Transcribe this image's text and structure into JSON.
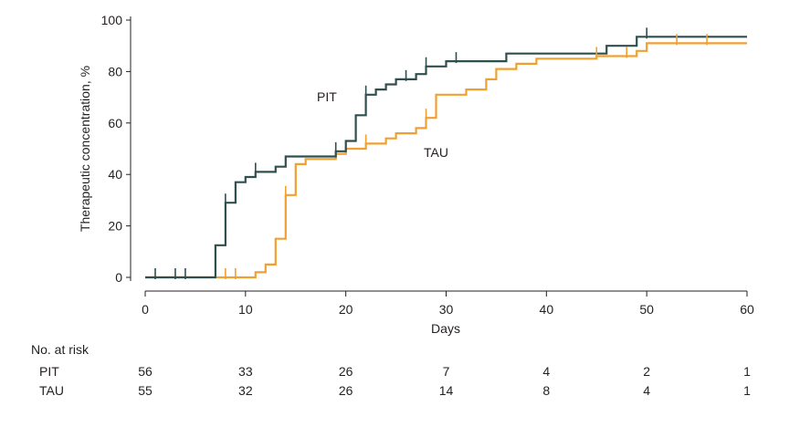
{
  "chart_data": {
    "type": "line",
    "subtype": "kaplan-meier-cumulative",
    "xlabel": "Days",
    "ylabel": "Therapeutic concentration, %",
    "xlim": [
      0,
      60
    ],
    "ylim": [
      0,
      100
    ],
    "x_ticks": [
      0,
      10,
      20,
      30,
      40,
      50,
      60
    ],
    "y_ticks": [
      0,
      20,
      40,
      60,
      80,
      100
    ],
    "grid": false,
    "series": [
      {
        "name": "PIT",
        "color": "#2f4f4f",
        "steps": [
          [
            0,
            0
          ],
          [
            7,
            0
          ],
          [
            7,
            12.5
          ],
          [
            8,
            12.5
          ],
          [
            8,
            29
          ],
          [
            9,
            29
          ],
          [
            9,
            37
          ],
          [
            10,
            37
          ],
          [
            10,
            39
          ],
          [
            11,
            39
          ],
          [
            11,
            41
          ],
          [
            13,
            41
          ],
          [
            13,
            43
          ],
          [
            14,
            43
          ],
          [
            14,
            47
          ],
          [
            19,
            47
          ],
          [
            19,
            49
          ],
          [
            20,
            49
          ],
          [
            20,
            53
          ],
          [
            21,
            53
          ],
          [
            21,
            63
          ],
          [
            22,
            63
          ],
          [
            22,
            71
          ],
          [
            23,
            71
          ],
          [
            23,
            73
          ],
          [
            24,
            73
          ],
          [
            24,
            75
          ],
          [
            25,
            75
          ],
          [
            25,
            77
          ],
          [
            27,
            77
          ],
          [
            27,
            79
          ],
          [
            28,
            79
          ],
          [
            28,
            82
          ],
          [
            30,
            82
          ],
          [
            30,
            84
          ],
          [
            36,
            84
          ],
          [
            36,
            87
          ],
          [
            46,
            87
          ],
          [
            46,
            90
          ],
          [
            49,
            90
          ],
          [
            49,
            93.5
          ],
          [
            60,
            93.5
          ]
        ],
        "censor_x": [
          1,
          3,
          4,
          8,
          11,
          19,
          22,
          26,
          28,
          31,
          50
        ]
      },
      {
        "name": "TAU",
        "color": "#f0a030",
        "steps": [
          [
            0,
            0
          ],
          [
            11,
            0
          ],
          [
            11,
            2
          ],
          [
            12,
            2
          ],
          [
            12,
            5
          ],
          [
            13,
            5
          ],
          [
            13,
            15
          ],
          [
            14,
            15
          ],
          [
            14,
            32
          ],
          [
            15,
            32
          ],
          [
            15,
            44
          ],
          [
            16,
            44
          ],
          [
            16,
            46
          ],
          [
            19,
            46
          ],
          [
            19,
            48
          ],
          [
            20,
            48
          ],
          [
            20,
            50
          ],
          [
            22,
            50
          ],
          [
            22,
            52
          ],
          [
            24,
            52
          ],
          [
            24,
            54
          ],
          [
            25,
            54
          ],
          [
            25,
            56
          ],
          [
            27,
            56
          ],
          [
            27,
            58
          ],
          [
            28,
            58
          ],
          [
            28,
            62
          ],
          [
            29,
            62
          ],
          [
            29,
            71
          ],
          [
            32,
            71
          ],
          [
            32,
            73
          ],
          [
            34,
            73
          ],
          [
            34,
            77
          ],
          [
            35,
            77
          ],
          [
            35,
            81
          ],
          [
            37,
            81
          ],
          [
            37,
            83
          ],
          [
            39,
            83
          ],
          [
            39,
            85
          ],
          [
            45,
            85
          ],
          [
            45,
            86
          ],
          [
            49,
            86
          ],
          [
            49,
            88
          ],
          [
            50,
            88
          ],
          [
            50,
            91
          ],
          [
            60,
            91
          ]
        ],
        "censor_x": [
          8,
          9,
          14,
          22,
          28,
          45,
          48,
          53,
          56
        ]
      }
    ],
    "annotations": [
      "PIT",
      "TAU"
    ]
  },
  "risk_table": {
    "title": "No. at risk",
    "rows": [
      {
        "label": "PIT",
        "values": [
          "56",
          "33",
          "26",
          "7",
          "4",
          "2",
          "1"
        ]
      },
      {
        "label": "TAU",
        "values": [
          "55",
          "32",
          "26",
          "14",
          "8",
          "4",
          "1"
        ]
      }
    ]
  }
}
